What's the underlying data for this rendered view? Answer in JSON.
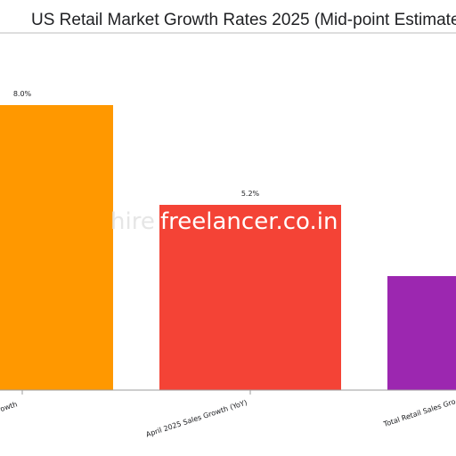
{
  "chart_data": {
    "type": "bar",
    "title": "US Retail Market Growth Rates 2025 (Mid-point Estimate",
    "categories": [
      "rowth",
      "April 2025 Sales Growth (YoY)",
      "Total Retail Sales Gro"
    ],
    "values": [
      8.0,
      5.2,
      3.2
    ],
    "value_labels": [
      "8.0%",
      "5.2%",
      ""
    ],
    "ylim": [
      0,
      9.0
    ],
    "colors": [
      "#FF9800",
      "#F44336",
      "#9C27B0"
    ],
    "grid": false,
    "xlabel": "",
    "ylabel": ""
  },
  "watermark": {
    "text_faint": "hire",
    "text_main": "freelancer.co.in"
  }
}
